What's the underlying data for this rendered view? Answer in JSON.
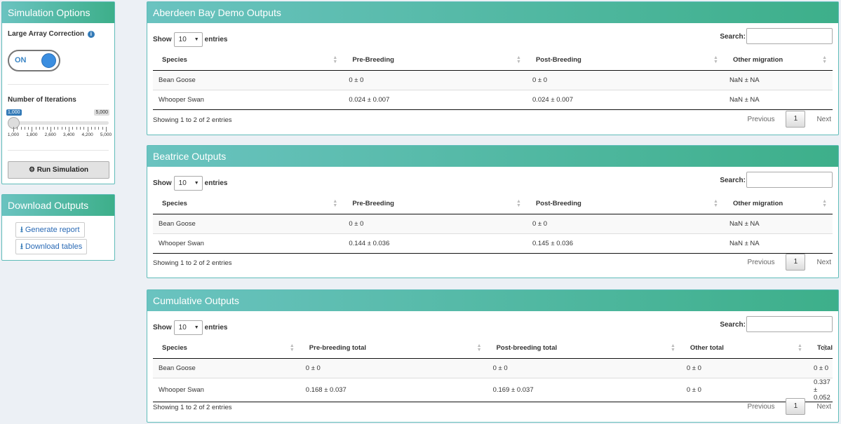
{
  "sidebar": {
    "simulation_options": {
      "title": "Simulation Options",
      "large_array_label": "Large Array Correction",
      "info_glyph": "i",
      "toggle_state": "ON",
      "iterations_label": "Number of Iterations",
      "slider": {
        "min_label": "1,000",
        "max_label": "5,000",
        "value": 1000,
        "tick_labels": [
          "1,000",
          "1,800",
          "2,600",
          "3,400",
          "4,200",
          "5,000"
        ]
      },
      "run_button": "Run Simulation"
    },
    "download_outputs": {
      "title": "Download Outputs",
      "generate_report": "Generate report",
      "download_tables": "Download tables"
    }
  },
  "panels": [
    {
      "title": "Aberdeen Bay Demo Outputs",
      "show": "Show",
      "entries": "entries",
      "page_length": "10",
      "search_label": "Search:",
      "columns": [
        "Species",
        "Pre-Breeding",
        "Post-Breeding",
        "Other migration"
      ],
      "rows": [
        [
          "Bean Goose",
          "0 ± 0",
          "0 ± 0",
          "NaN ± NA"
        ],
        [
          "Whooper Swan",
          "0.024 ± 0.007",
          "0.024 ± 0.007",
          "NaN ± NA"
        ]
      ],
      "info": "Showing 1 to 2 of 2 entries",
      "prev": "Previous",
      "page": "1",
      "next": "Next"
    },
    {
      "title": "Beatrice Outputs",
      "show": "Show",
      "entries": "entries",
      "page_length": "10",
      "search_label": "Search:",
      "columns": [
        "Species",
        "Pre-Breeding",
        "Post-Breeding",
        "Other migration"
      ],
      "rows": [
        [
          "Bean Goose",
          "0 ± 0",
          "0 ± 0",
          "NaN ± NA"
        ],
        [
          "Whooper Swan",
          "0.144 ± 0.036",
          "0.145 ± 0.036",
          "NaN ± NA"
        ]
      ],
      "info": "Showing 1 to 2 of 2 entries",
      "prev": "Previous",
      "page": "1",
      "next": "Next"
    },
    {
      "title": "Cumulative Outputs",
      "show": "Show",
      "entries": "entries",
      "page_length": "10",
      "search_label": "Search:",
      "columns": [
        "Species",
        "Pre-breeding total",
        "Post-breeding total",
        "Other total",
        "Total"
      ],
      "rows": [
        [
          "Bean Goose",
          "0 ± 0",
          "0 ± 0",
          "0 ± 0",
          "0 ± 0"
        ],
        [
          "Whooper Swan",
          "0.168 ± 0.037",
          "0.169 ± 0.037",
          "0 ± 0",
          "0.337 ± 0.052"
        ]
      ],
      "info": "Showing 1 to 2 of 2 entries",
      "prev": "Previous",
      "page": "1",
      "next": "Next"
    }
  ]
}
